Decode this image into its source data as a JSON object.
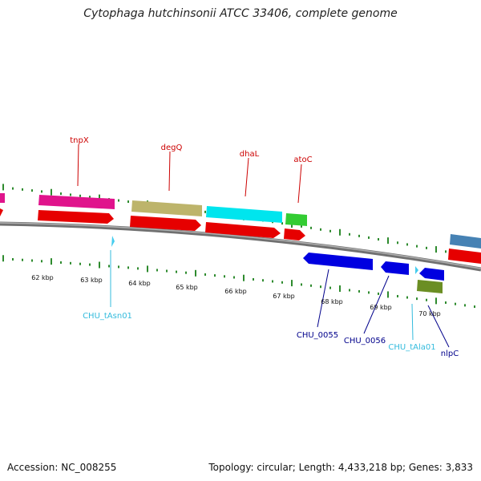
{
  "title": "Cytophaga hutchinsonii ATCC 33406, complete genome",
  "footer": {
    "accession": "Accession: NC_008255",
    "summary": "Topology: circular; Length: 4,433,218 bp; Genes: 3,833"
  },
  "colors": {
    "forward_label": "#cc0000",
    "reverse_label": "#00008b",
    "trna_label": "#33bbdd",
    "tick": "#2e8b2e",
    "backbone": "#8a8a8a",
    "cds_red": "#e60000",
    "magenta": "#e0148c",
    "khaki": "#bdb46b",
    "cyan": "#00e5ee",
    "green": "#33cc33",
    "blue": "#0000e0",
    "olive": "#6b8e23",
    "steelblue": "#4682b4",
    "trna": "#44ccee"
  },
  "kbp_labels": [
    "62 kbp",
    "63 kbp",
    "64 kbp",
    "65 kbp",
    "66 kbp",
    "67 kbp",
    "68 kbp",
    "69 kbp",
    "70 kbp"
  ],
  "gene_labels": {
    "tnpX": "tnpX",
    "degQ": "degQ",
    "dhaL": "dhaL",
    "atoC": "atoC",
    "CHU_tAsn01": "CHU_tAsn01",
    "CHU_0055": "CHU_0055",
    "CHU_0056": "CHU_0056",
    "CHU_tAla01": "CHU_tAla01",
    "nlpC": "nlpC"
  }
}
